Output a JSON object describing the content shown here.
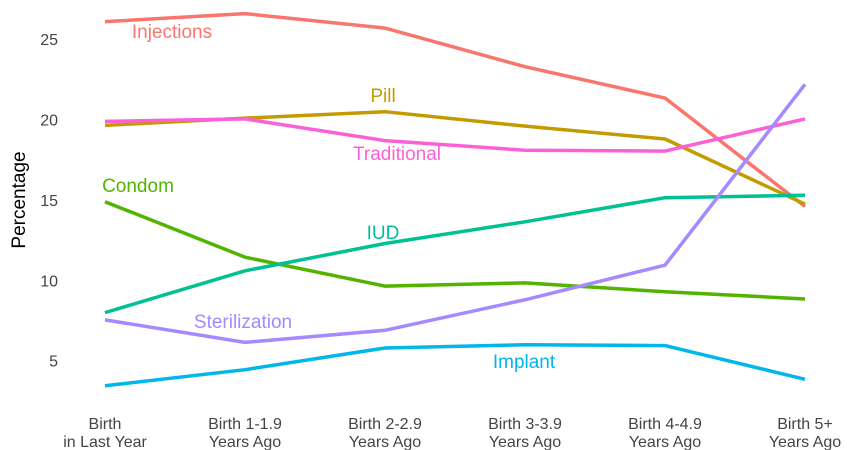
{
  "chart_data": {
    "type": "line",
    "y_label": "Percentage",
    "categories": [
      [
        "Birth",
        "in Last Year"
      ],
      [
        "Birth 1-1.9",
        "Years Ago"
      ],
      [
        "Birth 2-2.9",
        "Years Ago"
      ],
      [
        "Birth 3-3.9",
        "Years Ago"
      ],
      [
        "Birth 4-4.9",
        "Years Ago"
      ],
      [
        "Birth 5+",
        "Years Ago"
      ]
    ],
    "series": [
      {
        "name": "Injections",
        "color": "#f8766d",
        "values": [
          26.2,
          26.7,
          25.8,
          23.4,
          21.45,
          14.7
        ]
      },
      {
        "name": "Pill",
        "color": "#c49a00",
        "values": [
          19.75,
          20.2,
          20.6,
          19.7,
          18.9,
          14.85
        ]
      },
      {
        "name": "Traditional",
        "color": "#fb61d7",
        "values": [
          20.0,
          20.15,
          18.8,
          18.2,
          18.15,
          20.15
        ]
      },
      {
        "name": "Condom",
        "color": "#53b400",
        "values": [
          15.0,
          11.55,
          9.75,
          9.95,
          9.4,
          8.95
        ]
      },
      {
        "name": "IUD",
        "color": "#00c094",
        "values": [
          8.1,
          10.7,
          12.4,
          13.75,
          15.25,
          15.4
        ]
      },
      {
        "name": "Sterilization",
        "color": "#a58aff",
        "values": [
          7.65,
          6.25,
          7.0,
          8.9,
          11.05,
          22.3
        ]
      },
      {
        "name": "Implant",
        "color": "#00b6eb",
        "values": [
          3.55,
          4.55,
          5.9,
          6.1,
          6.05,
          3.95
        ]
      }
    ],
    "ylim": [
      3,
      27.3
    ],
    "yticks": [
      5,
      10,
      15,
      20,
      25
    ],
    "grid": false
  }
}
